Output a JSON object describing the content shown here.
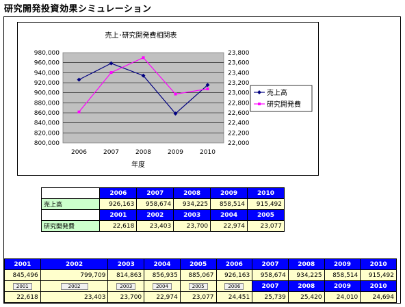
{
  "page": {
    "title": "研究開発投資効果シミュレーション"
  },
  "chart": {
    "title": "売上･研究開発費相関表",
    "xlabel": "年度"
  },
  "chart_data": {
    "type": "line",
    "title": "売上･研究開発費相関表",
    "xlabel": "年度",
    "categories": [
      "2006",
      "2007",
      "2008",
      "2009",
      "2010"
    ],
    "left_axis": {
      "ylim": [
        800000,
        980000
      ],
      "ticks": [
        "800,000",
        "820,000",
        "840,000",
        "860,000",
        "880,000",
        "900,000",
        "920,000",
        "940,000",
        "960,000",
        "980,000"
      ]
    },
    "right_axis": {
      "ylim": [
        22000,
        23800
      ],
      "ticks": [
        "22,000",
        "22,200",
        "22,400",
        "22,600",
        "22,800",
        "23,000",
        "23,200",
        "23,400",
        "23,600",
        "23,800"
      ]
    },
    "series": [
      {
        "name": "売上高",
        "axis": "left",
        "color": "#000080",
        "marker": "diamond",
        "values": [
          926163,
          958674,
          934225,
          858514,
          915492
        ]
      },
      {
        "name": "研究開発費",
        "axis": "right",
        "color": "#ff00ff",
        "marker": "square",
        "values": [
          22618,
          23403,
          23700,
          22974,
          23077
        ]
      }
    ],
    "plot_background": "#c0c0c0",
    "grid": true,
    "legend": "right"
  },
  "table1": {
    "sales_label": "売上高",
    "rd_label": "研究開発費",
    "sales_years": [
      "2006",
      "2007",
      "2008",
      "2009",
      "2010"
    ],
    "sales_values": [
      "926,163",
      "958,674",
      "934,225",
      "858,514",
      "915,492"
    ],
    "rd_years": [
      "2001",
      "2002",
      "2003",
      "2004",
      "2005"
    ],
    "rd_values": [
      "22,618",
      "23,403",
      "23,700",
      "22,974",
      "23,077"
    ]
  },
  "table2": {
    "years": [
      "2001",
      "2002",
      "2003",
      "2004",
      "2005",
      "2006",
      "2007",
      "2008",
      "2009",
      "2010"
    ],
    "sales_values": [
      "845,496",
      "799,709",
      "814,863",
      "856,935",
      "885,067",
      "926,163",
      "958,674",
      "934,225",
      "858,514",
      "915,492"
    ],
    "rd_buttons": [
      "2001",
      "2002",
      "2003",
      "2004",
      "2005",
      "2006"
    ],
    "rd_years_right": [
      "2007",
      "2008",
      "2009",
      "2010"
    ],
    "rd_values": [
      "22,618",
      "23,403",
      "23,700",
      "22,974",
      "23,077",
      "24,451",
      "25,739",
      "25,420",
      "24,010",
      "24,694"
    ]
  },
  "colors": {
    "header_blue": "#0000ff",
    "value_yellow": "#ffffcc",
    "label_green": "#ccffcc",
    "plot_gray": "#c0c0c0"
  }
}
